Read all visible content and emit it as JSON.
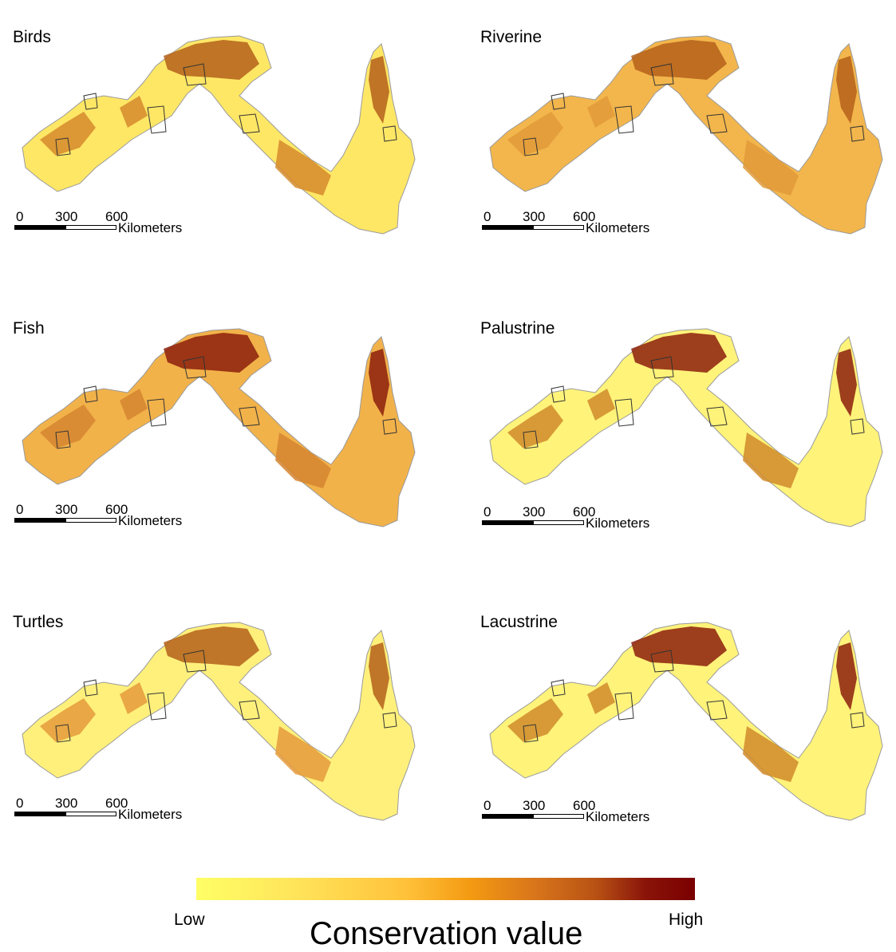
{
  "panels": [
    {
      "title": "Birds",
      "fill": "#ffe766",
      "accent": "#d68a2c",
      "hot": "#b4601a"
    },
    {
      "title": "Riverine",
      "fill": "#f3b64c",
      "accent": "#e09a38",
      "hot": "#b4601a"
    },
    {
      "title": "Fish",
      "fill": "#f2b24a",
      "accent": "#d68530",
      "hot": "#8c1e0c"
    },
    {
      "title": "Palustrine",
      "fill": "#fff37a",
      "accent": "#d08a2a",
      "hot": "#8c1e0c"
    },
    {
      "title": "Turtles",
      "fill": "#fff07c",
      "accent": "#e59a3c",
      "hot": "#b4601a"
    },
    {
      "title": "Lacustrine",
      "fill": "#fff37a",
      "accent": "#d08a2a",
      "hot": "#8c1e0c"
    }
  ],
  "scale_bar": {
    "ticks": [
      "0",
      "300",
      "600"
    ],
    "unit": "Kilometers"
  },
  "legend": {
    "low": "Low",
    "high": "High",
    "title": "Conservation value",
    "colors": [
      "#ffff66",
      "#ffc23a",
      "#f39a12",
      "#b85214",
      "#7a0000"
    ]
  }
}
